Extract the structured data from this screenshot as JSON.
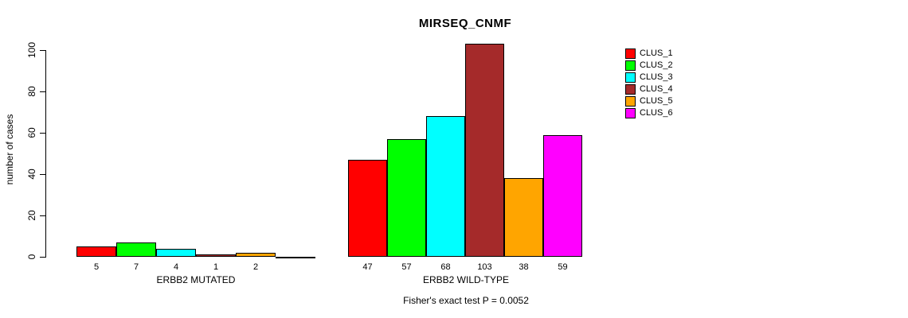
{
  "chart_data": {
    "type": "bar",
    "title": "MIRSEQ_CNMF",
    "xlabel": "",
    "ylabel": "number of cases",
    "ylim": [
      0,
      100
    ],
    "y_ticks": [
      0,
      20,
      40,
      60,
      80,
      100
    ],
    "grid": false,
    "legend_position": "top-right",
    "categories": [
      "ERBB2 MUTATED",
      "ERBB2 WILD-TYPE"
    ],
    "series": [
      {
        "name": "CLUS_1",
        "color": "#FF0000",
        "values": [
          5,
          47
        ]
      },
      {
        "name": "CLUS_2",
        "color": "#00FF00",
        "values": [
          7,
          57
        ]
      },
      {
        "name": "CLUS_3",
        "color": "#00FFFF",
        "values": [
          4,
          68
        ]
      },
      {
        "name": "CLUS_4",
        "color": "#A52A2A",
        "values": [
          1,
          103
        ]
      },
      {
        "name": "CLUS_5",
        "color": "#FFA500",
        "values": [
          2,
          38
        ]
      },
      {
        "name": "CLUS_6",
        "color": "#FF00FF",
        "values": [
          0,
          59
        ]
      }
    ],
    "bar_value_labels": [
      [
        "5",
        "7",
        "4",
        "1",
        "2",
        ""
      ],
      [
        "47",
        "57",
        "68",
        "103",
        "38",
        "59"
      ]
    ],
    "annotation": "Fisher's exact test P = 0.0052"
  }
}
